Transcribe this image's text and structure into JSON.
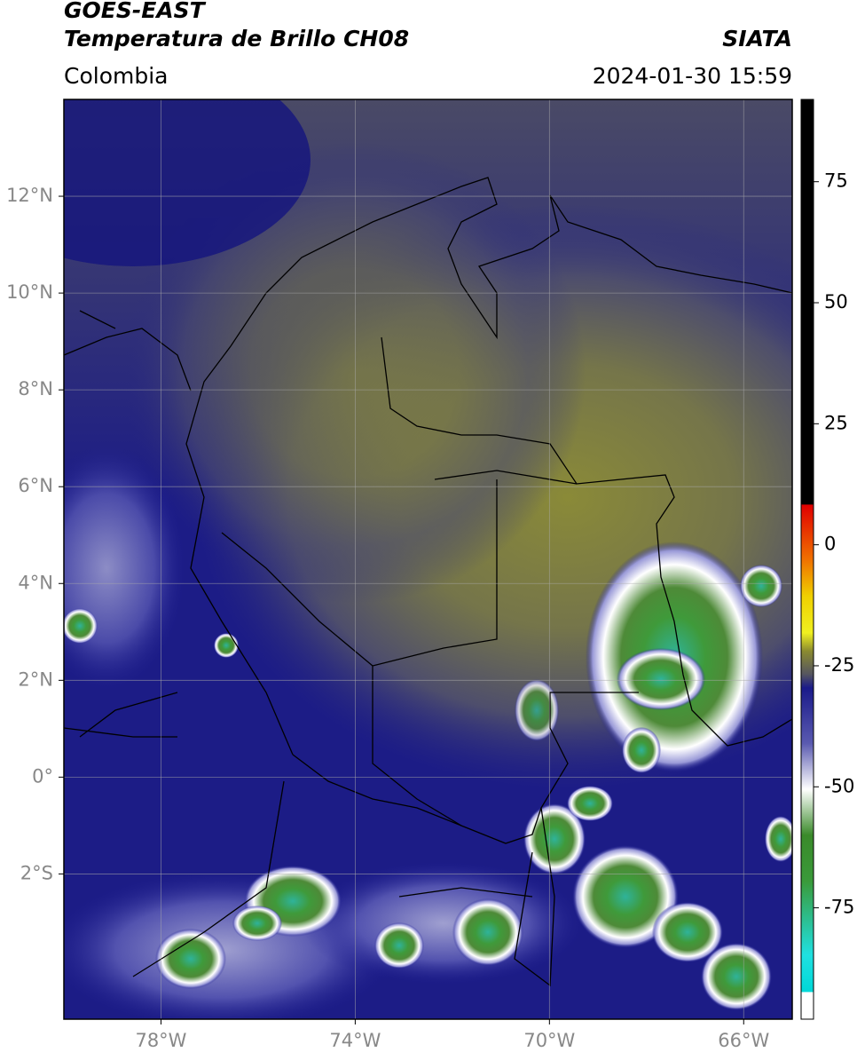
{
  "header": {
    "satellite": "GOES-EAST",
    "product": "Temperatura de Brillo CH08",
    "source": "SIATA",
    "region": "Colombia",
    "datetime": "2024-01-30 15:59"
  },
  "map": {
    "xlim": [
      -80,
      -65
    ],
    "ylim": [
      -5,
      14
    ],
    "xticks": [
      {
        "value": -78,
        "label": "78°W"
      },
      {
        "value": -74,
        "label": "74°W"
      },
      {
        "value": -70,
        "label": "70°W"
      },
      {
        "value": -66,
        "label": "66°W"
      }
    ],
    "yticks": [
      {
        "value": -2,
        "label": "2°S"
      },
      {
        "value": 0,
        "label": "0°"
      },
      {
        "value": 2,
        "label": "2°N"
      },
      {
        "value": 4,
        "label": "4°N"
      },
      {
        "value": 6,
        "label": "6°N"
      },
      {
        "value": 8,
        "label": "8°N"
      },
      {
        "value": 10,
        "label": "10°N"
      },
      {
        "value": 12,
        "label": "12°N"
      }
    ],
    "grid": true
  },
  "colorbar": {
    "lim": [
      -98,
      92
    ],
    "ticks": [
      -75,
      -50,
      -25,
      0,
      25,
      50,
      75
    ]
  }
}
